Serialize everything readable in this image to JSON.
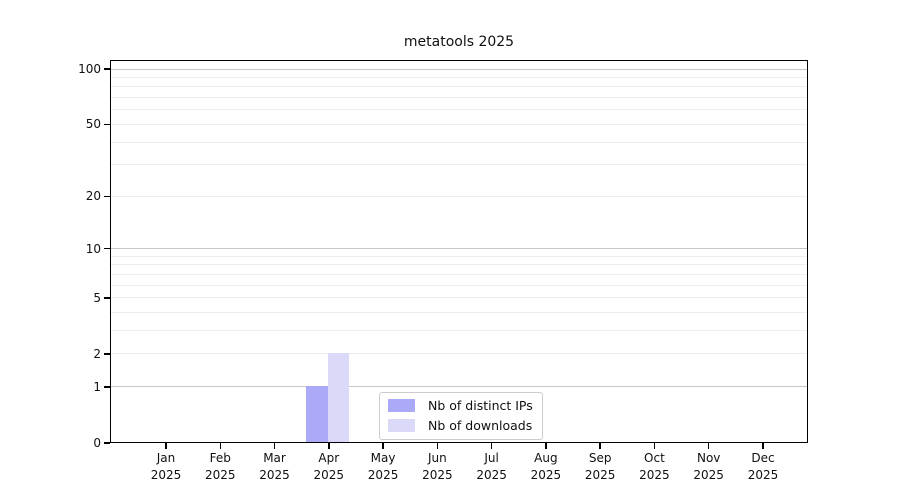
{
  "title": "metatools 2025",
  "chart_data": {
    "type": "bar",
    "title": "metatools 2025",
    "categories": [
      "Jan 2025",
      "Feb 2025",
      "Mar 2025",
      "Apr 2025",
      "May 2025",
      "Jun 2025",
      "Jul 2025",
      "Aug 2025",
      "Sep 2025",
      "Oct 2025",
      "Nov 2025",
      "Dec 2025"
    ],
    "series": [
      {
        "name": "Nb of distinct IPs",
        "color": "#aaaaf8",
        "values": [
          0,
          0,
          0,
          1,
          0,
          0,
          0,
          0,
          0,
          0,
          0,
          0
        ]
      },
      {
        "name": "Nb of downloads",
        "color": "#dadaf8",
        "values": [
          0,
          0,
          0,
          2,
          0,
          0,
          0,
          0,
          0,
          0,
          0,
          0
        ]
      }
    ],
    "xlabel": "",
    "ylabel": "",
    "y_scale": "log1p",
    "ylim": [
      0,
      112
    ],
    "y_ticks": [
      0,
      1,
      2,
      5,
      10,
      20,
      50,
      100
    ],
    "y_major_gridlines": [
      1,
      10,
      100
    ],
    "y_minor_gridlines": [
      2,
      3,
      4,
      5,
      6,
      7,
      8,
      9,
      20,
      30,
      40,
      50,
      60,
      70,
      80,
      90
    ],
    "grid": true,
    "legend_position": "bottom-center"
  },
  "colors": {
    "bar_distinct_ips": "#aaaaf8",
    "bar_downloads": "#dadaf8",
    "major_grid": "#c6c6c6",
    "minor_grid": "#ededed",
    "axis": "#000000",
    "text": "#111111",
    "legend_border": "#cccccc",
    "background": "#ffffff"
  }
}
